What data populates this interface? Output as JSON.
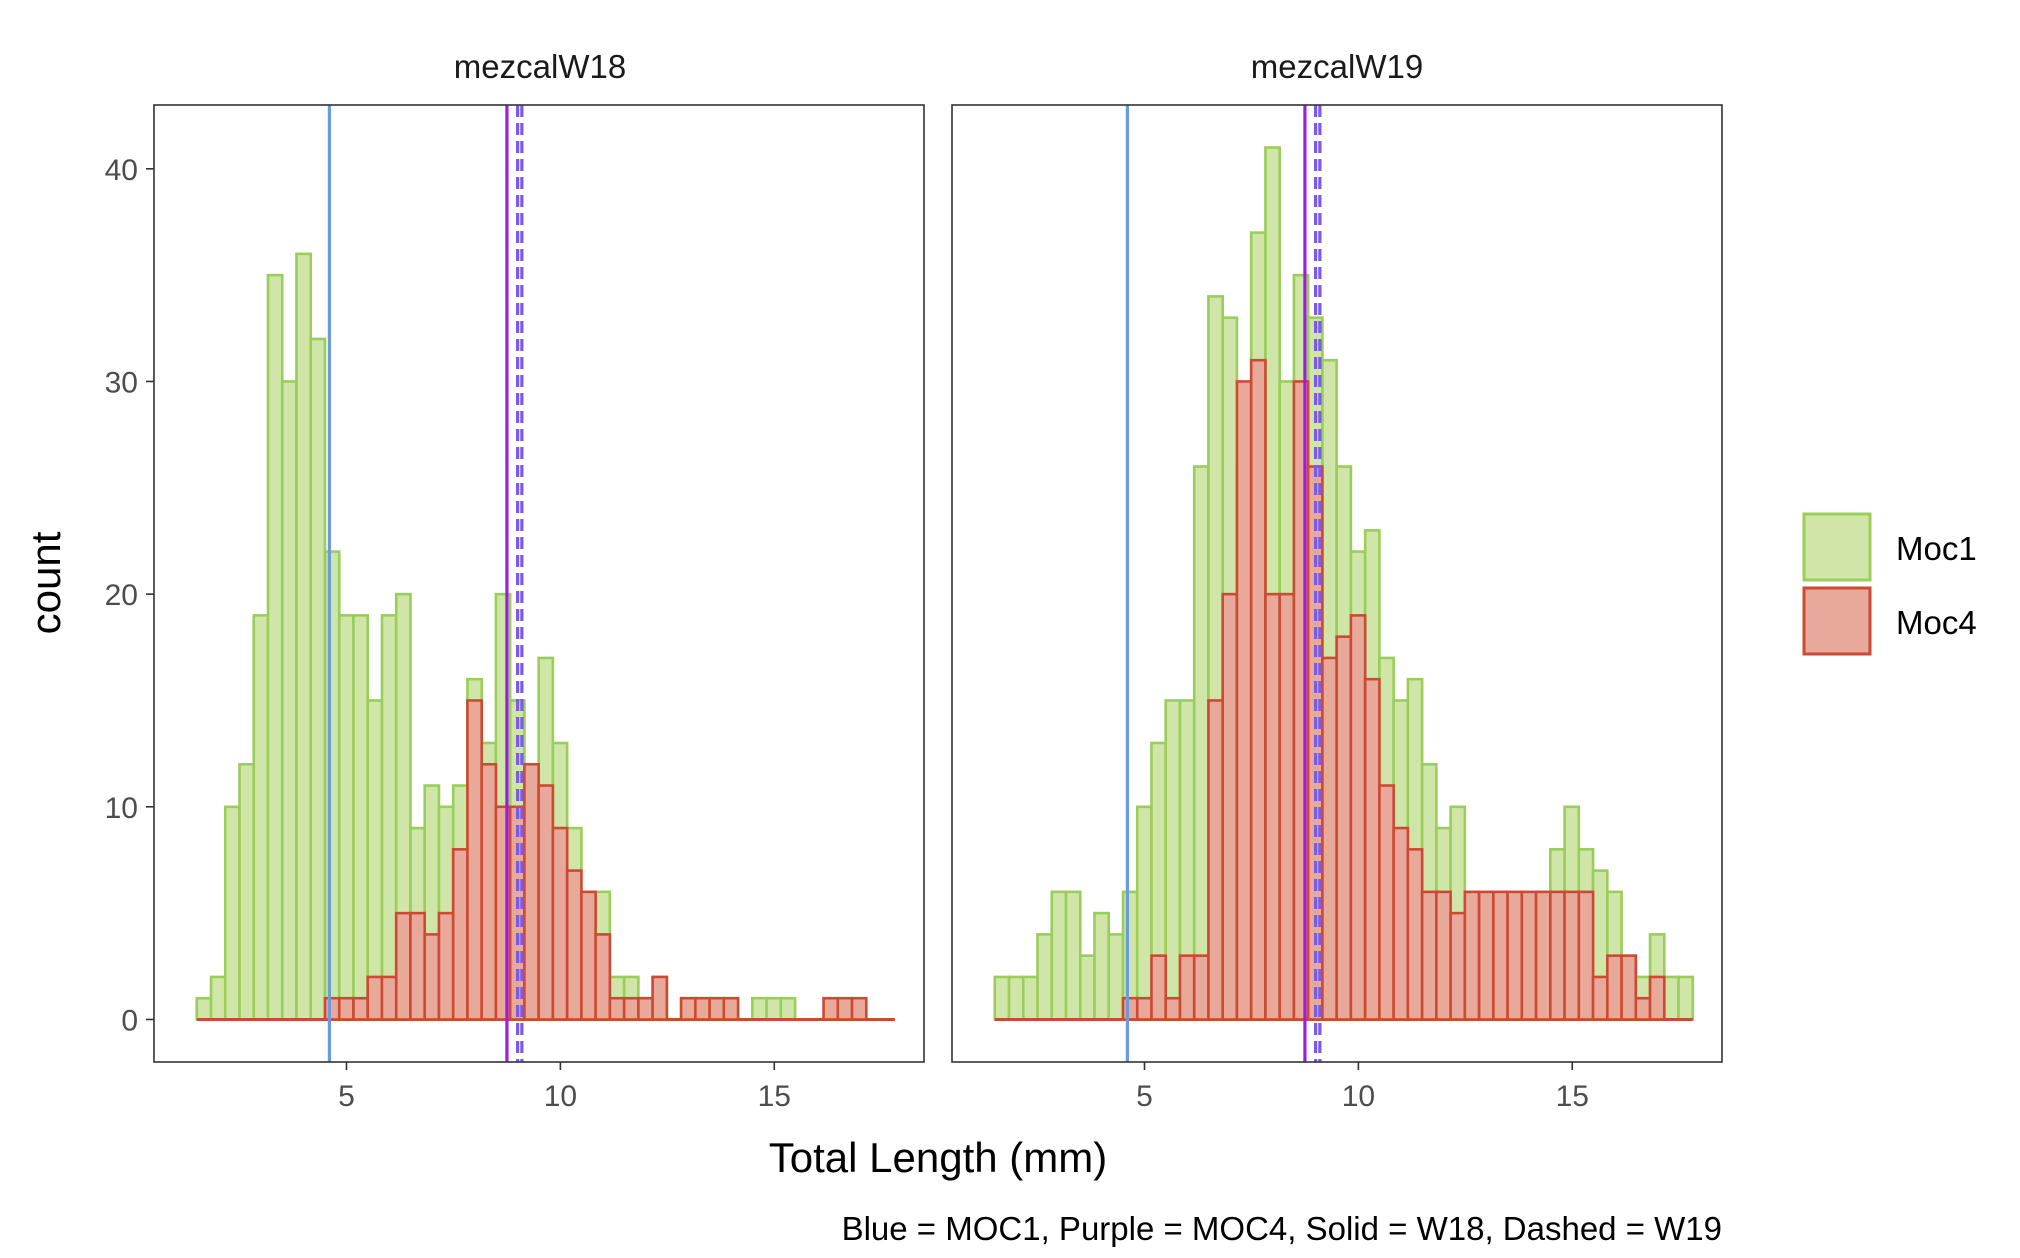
{
  "chart_data": {
    "type": "histogram",
    "xlabel": "Total Length (mm)",
    "ylabel": "count",
    "caption": "Blue = MOC1, Purple = MOC4, Solid = W18, Dashed = W19",
    "xlim": [
      0.5,
      18.5
    ],
    "ylim": [
      -2,
      43
    ],
    "x_ticks": [
      5,
      10,
      15
    ],
    "y_ticks": [
      0,
      10,
      20,
      30,
      40
    ],
    "bin_start": 1.5,
    "bin_width": 0.333,
    "legend": {
      "position": "right",
      "items": [
        {
          "label": "Moc1",
          "fill": "#cfe6a8",
          "stroke": "#9acd5a"
        },
        {
          "label": "Moc4",
          "fill": "#e8a99a",
          "stroke": "#cc4a33"
        }
      ]
    },
    "colors": {
      "moc1_fill": "#cfe6a8",
      "moc1_stroke": "#9acd5a",
      "moc4_fill": "#e8a99a",
      "moc4_stroke": "#cc4a33",
      "line_moc1": "#6a9be0",
      "line_moc4": "#9a1ee0",
      "line_dashed": "#7a5ae8"
    },
    "panels": [
      {
        "title": "mezcalW18",
        "series": [
          {
            "name": "Moc1",
            "counts": [
              1,
              2,
              10,
              12,
              19,
              35,
              30,
              36,
              32,
              22,
              19,
              19,
              15,
              19,
              20,
              9,
              11,
              10,
              11,
              16,
              13,
              20,
              15,
              12,
              17,
              13,
              9,
              6,
              6,
              2,
              2,
              1,
              2,
              0,
              1,
              1,
              1,
              1,
              0,
              1,
              1,
              1,
              0,
              0,
              0,
              0,
              0,
              0,
              0
            ]
          },
          {
            "name": "Moc4",
            "counts": [
              0,
              0,
              0,
              0,
              0,
              0,
              0,
              0,
              0,
              1,
              1,
              1,
              2,
              2,
              5,
              5,
              4,
              5,
              8,
              15,
              12,
              10,
              10,
              12,
              11,
              9,
              7,
              6,
              4,
              1,
              1,
              1,
              2,
              0,
              1,
              1,
              1,
              1,
              0,
              0,
              0,
              0,
              0,
              0,
              1,
              1,
              1,
              0,
              0
            ]
          }
        ],
        "vlines": [
          {
            "x": 4.6,
            "style": "solid",
            "color": "#6a9be0"
          },
          {
            "x": 8.75,
            "style": "solid",
            "color": "#9a1ee0"
          },
          {
            "x": 9.0,
            "style": "dashed",
            "color": "#7a5ae8"
          },
          {
            "x": 9.1,
            "style": "dashed",
            "color": "#7a5ae8"
          }
        ]
      },
      {
        "title": "mezcalW19",
        "series": [
          {
            "name": "Moc1",
            "counts": [
              2,
              2,
              2,
              4,
              6,
              6,
              3,
              5,
              4,
              6,
              10,
              13,
              15,
              15,
              26,
              34,
              33,
              26,
              37,
              41,
              30,
              35,
              33,
              31,
              26,
              22,
              23,
              17,
              15,
              16,
              12,
              9,
              10,
              6,
              5,
              6,
              4,
              3,
              6,
              8,
              10,
              8,
              7,
              6,
              3,
              2,
              4,
              2,
              2
            ]
          },
          {
            "name": "Moc4",
            "counts": [
              0,
              0,
              0,
              0,
              0,
              0,
              0,
              0,
              0,
              1,
              1,
              3,
              1,
              3,
              3,
              15,
              20,
              30,
              31,
              20,
              20,
              30,
              26,
              17,
              18,
              19,
              16,
              11,
              9,
              8,
              6,
              6,
              5,
              6,
              6,
              6,
              6,
              6,
              6,
              6,
              6,
              6,
              2,
              3,
              3,
              1,
              2,
              0,
              0
            ]
          }
        ],
        "vlines": [
          {
            "x": 4.6,
            "style": "solid",
            "color": "#6a9be0"
          },
          {
            "x": 8.75,
            "style": "solid",
            "color": "#9a1ee0"
          },
          {
            "x": 9.0,
            "style": "dashed",
            "color": "#7a5ae8"
          },
          {
            "x": 9.1,
            "style": "dashed",
            "color": "#7a5ae8"
          }
        ]
      }
    ]
  }
}
